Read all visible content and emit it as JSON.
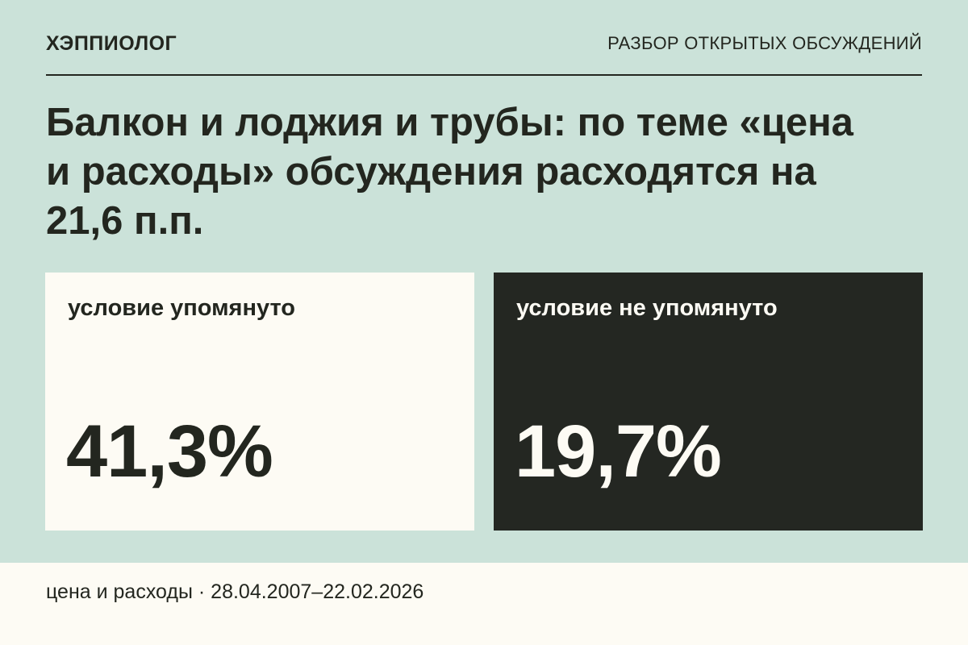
{
  "header": {
    "brand": "ХЭППИОЛОГ",
    "section": "РАЗБОР ОТКРЫТЫХ ОБСУЖДЕНИЙ"
  },
  "headline": "Балкон и лоджия и трубы: по теме «цена и расходы» обсуждения расходятся на 21,6 п.п.",
  "cards": [
    {
      "label": "условие упомянуто",
      "value": "41,3%"
    },
    {
      "label": "условие не упомянуто",
      "value": "19,7%"
    }
  ],
  "footer": {
    "text": "цена и расходы · 28.04.2007–22.02.2026"
  },
  "colors": {
    "background": "#cbe2d9",
    "ink": "#23261f",
    "paper": "#fdfbf4",
    "dark_card": "#242722"
  }
}
